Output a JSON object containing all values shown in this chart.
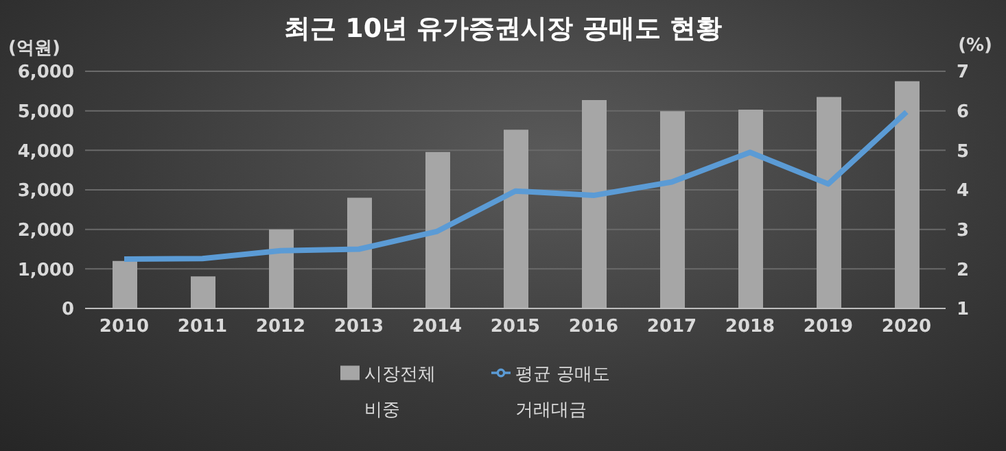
{
  "chart_data": {
    "type": "bar",
    "title": "최근 10년 유가증권시장 공매도 현황",
    "ylabel": "(억원)",
    "y2label": "(%)",
    "categories": [
      "2010",
      "2011",
      "2012",
      "2013",
      "2014",
      "2015",
      "2016",
      "2017",
      "2018",
      "2019",
      "2020"
    ],
    "series": [
      {
        "name": "시장전체 비중",
        "axis": "y2",
        "color": "#a6a6a6",
        "values": [
          2.2,
          1.81,
          3.0,
          3.8,
          4.96,
          5.52,
          6.27,
          5.99,
          6.03,
          6.35,
          6.75
        ]
      },
      {
        "name": "평균 공매도 거래대금",
        "type": "line",
        "axis": "y",
        "color": "#5b9bd5",
        "values": [
          1250,
          1260,
          1460,
          1500,
          1950,
          2970,
          2860,
          3200,
          3950,
          3150,
          4970
        ]
      }
    ],
    "ylim": [
      0,
      6000
    ],
    "yticks": [
      0,
      {
        "value": 1000,
        "label": "1,000"
      },
      {
        "value": 2000,
        "label": "2,000"
      },
      {
        "value": 3000,
        "label": "3,000"
      },
      {
        "value": 4000,
        "label": "4,000"
      },
      {
        "value": 5000,
        "label": "5,000"
      },
      {
        "value": 6000,
        "label": "6,000"
      }
    ],
    "y2lim": [
      1,
      7
    ],
    "y2ticks": [
      1,
      2,
      3,
      4,
      5,
      6,
      7
    ],
    "grid": "y",
    "legend": "bottom",
    "marker": "none",
    "line_style": "solid"
  }
}
